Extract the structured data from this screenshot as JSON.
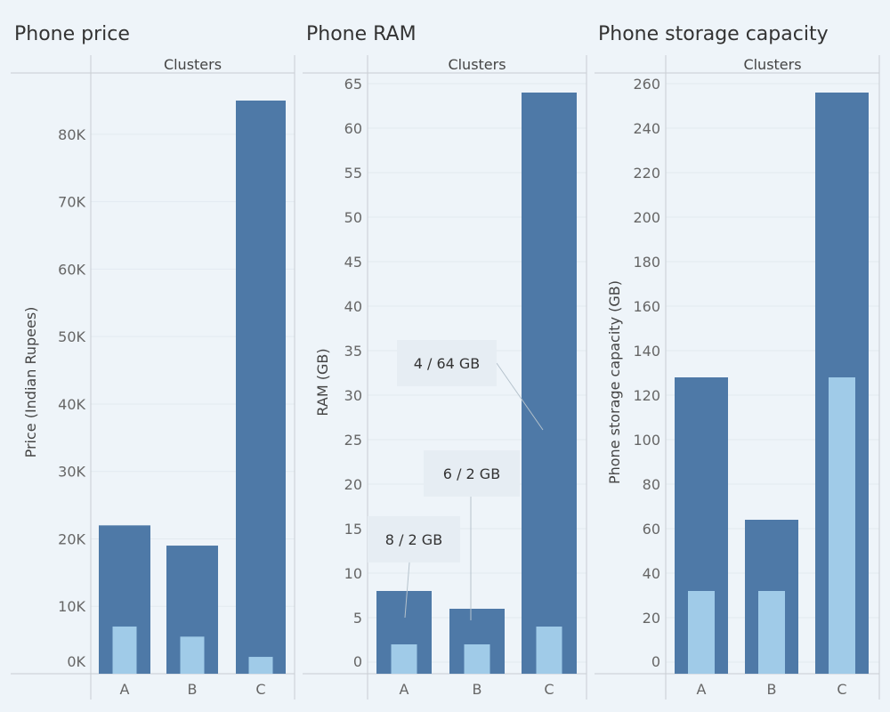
{
  "chart_data": [
    {
      "type": "bar",
      "title": "Phone price",
      "column_header": "Clusters",
      "ylabel": "Price (Indian Rupees)",
      "categories": [
        "A",
        "B",
        "C"
      ],
      "ylim": [
        0,
        90000
      ],
      "yticks": [
        0,
        10000,
        20000,
        30000,
        40000,
        50000,
        60000,
        70000,
        80000
      ],
      "ytick_labels": [
        "0K",
        "10K",
        "20K",
        "30K",
        "40K",
        "50K",
        "60K",
        "70K",
        "80K"
      ],
      "grid": true,
      "series": [
        {
          "values": [
            22000,
            19000,
            85000
          ],
          "color": "#4e79a7"
        },
        {
          "values": [
            7000,
            5500,
            2500
          ],
          "color": "#a0cbe8"
        }
      ],
      "annotations": []
    },
    {
      "type": "bar",
      "title": "Phone RAM",
      "column_header": "Clusters",
      "ylabel": "RAM (GB)",
      "categories": [
        "A",
        "B",
        "C"
      ],
      "ylim": [
        -1.5,
        66
      ],
      "yticks": [
        0,
        5,
        10,
        15,
        20,
        25,
        30,
        35,
        40,
        45,
        50,
        55,
        60,
        65
      ],
      "ytick_labels": [
        "0",
        "5",
        "10",
        "15",
        "20",
        "25",
        "30",
        "35",
        "40",
        "45",
        "50",
        "55",
        "60",
        "65"
      ],
      "grid": true,
      "series": [
        {
          "values": [
            8,
            6,
            64
          ],
          "color": "#4e79a7"
        },
        {
          "values": [
            2,
            2,
            4
          ],
          "color": "#a0cbe8"
        }
      ],
      "annotations": [
        {
          "text": "8 / 2 GB",
          "category": "A"
        },
        {
          "text": "6 / 2 GB",
          "category": "B"
        },
        {
          "text": "4 / 64 GB",
          "category": "C"
        }
      ]
    },
    {
      "type": "bar",
      "title": "Phone storage capacity",
      "column_header": "Clusters",
      "ylabel": "Phone storage capacity (GB)",
      "categories": [
        "A",
        "B",
        "C"
      ],
      "ylim": [
        -6,
        264
      ],
      "yticks": [
        0,
        20,
        40,
        60,
        80,
        100,
        120,
        140,
        160,
        180,
        200,
        220,
        240,
        260
      ],
      "ytick_labels": [
        "0",
        "20",
        "40",
        "60",
        "80",
        "100",
        "120",
        "140",
        "160",
        "180",
        "200",
        "220",
        "240",
        "260"
      ],
      "grid": true,
      "series": [
        {
          "values": [
            128,
            64,
            256
          ],
          "color": "#4e79a7"
        },
        {
          "values": [
            32,
            32,
            128
          ],
          "color": "#a0cbe8"
        }
      ],
      "annotations": []
    }
  ]
}
